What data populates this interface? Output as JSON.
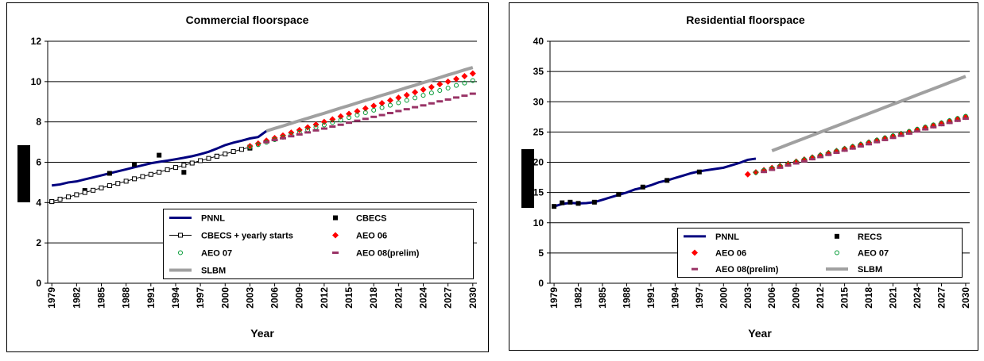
{
  "chart_data": [
    {
      "type": "line",
      "title": "Commercial floorspace",
      "xlabel": "Year",
      "xlim": [
        1978.5,
        2030.5
      ],
      "xticks": [
        1979,
        1982,
        1985,
        1988,
        1991,
        1994,
        1997,
        2000,
        2003,
        2006,
        2009,
        2012,
        2015,
        2018,
        2021,
        2024,
        2027,
        2030
      ],
      "ylim": [
        0,
        12
      ],
      "yticks": [
        0,
        2,
        4,
        6,
        8,
        10,
        12
      ],
      "grid": true,
      "legend": "lower right",
      "series": [
        {
          "name": "PNNL",
          "color": "#00007f",
          "marker": "line",
          "x": [
            1979,
            1980,
            1981,
            1982,
            1983,
            1984,
            1985,
            1986,
            1987,
            1988,
            1989,
            1990,
            1991,
            1992,
            1993,
            1994,
            1995,
            1996,
            1997,
            1998,
            1999,
            2000,
            2001,
            2002,
            2003,
            2004,
            2005
          ],
          "values": [
            4.85,
            4.9,
            5.0,
            5.05,
            5.15,
            5.25,
            5.35,
            5.45,
            5.55,
            5.65,
            5.75,
            5.85,
            5.95,
            6.02,
            6.08,
            6.15,
            6.22,
            6.3,
            6.4,
            6.52,
            6.68,
            6.85,
            6.97,
            7.07,
            7.18,
            7.25,
            7.55
          ]
        },
        {
          "name": "CBECS",
          "color": "#000000",
          "marker": "square",
          "x": [
            1979,
            1983,
            1986,
            1989,
            1992,
            1995,
            1999,
            2003
          ],
          "values": [
            4.05,
            4.6,
            5.45,
            5.9,
            6.35,
            5.5,
            6.3,
            6.7
          ]
        },
        {
          "name": "CBECS + yearly starts",
          "color": "#000000",
          "marker": "line-open-square",
          "x": [
            1979,
            1980,
            1981,
            1982,
            1983,
            1984,
            1985,
            1986,
            1987,
            1988,
            1989,
            1990,
            1991,
            1992,
            1993,
            1994,
            1995,
            1996,
            1997,
            1998,
            1999,
            2000,
            2001,
            2002,
            2003
          ],
          "values": [
            4.05,
            4.17,
            4.28,
            4.39,
            4.5,
            4.61,
            4.73,
            4.84,
            4.95,
            5.06,
            5.18,
            5.29,
            5.4,
            5.51,
            5.63,
            5.74,
            5.85,
            5.96,
            6.08,
            6.19,
            6.3,
            6.41,
            6.53,
            6.64,
            6.75
          ]
        },
        {
          "name": "AEO 06",
          "color": "#ff0000",
          "marker": "diamond",
          "x": [
            2003,
            2004,
            2005,
            2006,
            2007,
            2008,
            2009,
            2010,
            2011,
            2012,
            2013,
            2014,
            2015,
            2016,
            2017,
            2018,
            2019,
            2020,
            2021,
            2022,
            2023,
            2024,
            2025,
            2026,
            2027,
            2028,
            2029,
            2030
          ],
          "values": [
            6.8,
            6.93,
            7.07,
            7.2,
            7.33,
            7.47,
            7.6,
            7.73,
            7.87,
            8.0,
            8.13,
            8.27,
            8.4,
            8.53,
            8.67,
            8.8,
            8.93,
            9.07,
            9.2,
            9.33,
            9.47,
            9.6,
            9.73,
            9.87,
            10.0,
            10.13,
            10.27,
            10.4
          ]
        },
        {
          "name": "AEO 07",
          "color": "#009933",
          "marker": "open-circle",
          "x": [
            2003,
            2004,
            2005,
            2006,
            2007,
            2008,
            2009,
            2010,
            2011,
            2012,
            2013,
            2014,
            2015,
            2016,
            2017,
            2018,
            2019,
            2020,
            2021,
            2022,
            2023,
            2024,
            2025,
            2026,
            2027,
            2028,
            2029,
            2030
          ],
          "values": [
            6.75,
            6.87,
            6.99,
            7.12,
            7.24,
            7.36,
            7.48,
            7.61,
            7.73,
            7.85,
            7.97,
            8.09,
            8.22,
            8.34,
            8.46,
            8.58,
            8.71,
            8.83,
            8.95,
            9.07,
            9.19,
            9.32,
            9.44,
            9.56,
            9.68,
            9.81,
            9.93,
            10.05
          ]
        },
        {
          "name": "AEO 08(prelim)",
          "color": "#993366",
          "marker": "dash",
          "x": [
            2005,
            2006,
            2007,
            2008,
            2009,
            2010,
            2011,
            2012,
            2013,
            2014,
            2015,
            2016,
            2017,
            2018,
            2019,
            2020,
            2021,
            2022,
            2023,
            2024,
            2025,
            2026,
            2027,
            2028,
            2029,
            2030
          ],
          "values": [
            7.0,
            7.1,
            7.19,
            7.29,
            7.38,
            7.48,
            7.58,
            7.67,
            7.77,
            7.86,
            7.96,
            8.06,
            8.15,
            8.25,
            8.34,
            8.44,
            8.54,
            8.63,
            8.73,
            8.82,
            8.92,
            9.02,
            9.11,
            9.21,
            9.3,
            9.4
          ]
        },
        {
          "name": "SLBM",
          "color": "#a0a0a0",
          "marker": "thick-line",
          "x": [
            2005,
            2006,
            2007,
            2008,
            2009,
            2010,
            2011,
            2012,
            2013,
            2014,
            2015,
            2016,
            2017,
            2018,
            2019,
            2020,
            2021,
            2022,
            2023,
            2024,
            2025,
            2026,
            2027,
            2028,
            2029,
            2030
          ],
          "values": [
            7.55,
            7.68,
            7.8,
            7.93,
            8.06,
            8.18,
            8.31,
            8.43,
            8.56,
            8.69,
            8.81,
            8.94,
            9.07,
            9.19,
            9.32,
            9.44,
            9.57,
            9.7,
            9.82,
            9.95,
            10.07,
            10.2,
            10.33,
            10.45,
            10.58,
            10.7
          ]
        }
      ]
    },
    {
      "type": "line",
      "title": "Residential floorspace",
      "xlabel": "Year",
      "xlim": [
        1978.5,
        2030.5
      ],
      "xticks": [
        1979,
        1982,
        1985,
        1988,
        1991,
        1994,
        1997,
        2000,
        2003,
        2006,
        2009,
        2012,
        2015,
        2018,
        2021,
        2024,
        2027,
        2030
      ],
      "ylim": [
        0,
        40
      ],
      "yticks": [
        0,
        5,
        10,
        15,
        20,
        25,
        30,
        35,
        40
      ],
      "grid": true,
      "legend": "lower right",
      "series": [
        {
          "name": "PNNL",
          "color": "#00007f",
          "marker": "line",
          "x": [
            1979,
            1980,
            1981,
            1982,
            1983,
            1984,
            1985,
            1986,
            1987,
            1988,
            1989,
            1990,
            1991,
            1992,
            1993,
            1994,
            1995,
            1996,
            1997,
            1998,
            1999,
            2000,
            2001,
            2002,
            2003,
            2004
          ],
          "values": [
            12.7,
            13.1,
            13.3,
            13.2,
            13.25,
            13.4,
            13.8,
            14.2,
            14.6,
            15.0,
            15.5,
            15.8,
            16.2,
            16.7,
            17.0,
            17.4,
            17.8,
            18.2,
            18.5,
            18.7,
            18.9,
            19.1,
            19.5,
            19.9,
            20.4,
            20.6
          ]
        },
        {
          "name": "RECS",
          "color": "#000000",
          "marker": "square",
          "x": [
            1979,
            1980,
            1981,
            1982,
            1984,
            1987,
            1990,
            1993,
            1997
          ],
          "values": [
            12.7,
            13.3,
            13.4,
            13.2,
            13.4,
            14.7,
            15.9,
            17.0,
            18.4
          ]
        },
        {
          "name": "AEO 06",
          "color": "#ff0000",
          "marker": "diamond",
          "x": [
            2003,
            2004,
            2005,
            2006,
            2007,
            2008,
            2009,
            2010,
            2011,
            2012,
            2013,
            2014,
            2015,
            2016,
            2017,
            2018,
            2019,
            2020,
            2021,
            2022,
            2023,
            2024,
            2025,
            2026,
            2027,
            2028,
            2029,
            2030
          ],
          "values": [
            18.0,
            18.35,
            18.7,
            19.06,
            19.41,
            19.76,
            20.11,
            20.46,
            20.81,
            21.17,
            21.52,
            21.87,
            22.22,
            22.57,
            22.93,
            23.28,
            23.63,
            23.98,
            24.33,
            24.69,
            25.04,
            25.39,
            25.74,
            26.09,
            26.44,
            26.8,
            27.15,
            27.5
          ]
        },
        {
          "name": "AEO 07",
          "color": "#009933",
          "marker": "open-circle",
          "x": [
            2004,
            2005,
            2006,
            2007,
            2008,
            2009,
            2010,
            2011,
            2012,
            2013,
            2014,
            2015,
            2016,
            2017,
            2018,
            2019,
            2020,
            2021,
            2022,
            2023,
            2024,
            2025,
            2026,
            2027,
            2028,
            2029,
            2030
          ],
          "values": [
            18.3,
            18.66,
            19.02,
            19.37,
            19.73,
            20.09,
            20.45,
            20.81,
            21.16,
            21.52,
            21.88,
            22.24,
            22.6,
            22.95,
            23.31,
            23.67,
            24.03,
            24.39,
            24.74,
            25.1,
            25.46,
            25.82,
            26.18,
            26.53,
            26.89,
            27.25,
            27.6
          ]
        },
        {
          "name": "AEO 08(prelim)",
          "color": "#993366",
          "marker": "dash",
          "x": [
            2005,
            2006,
            2007,
            2008,
            2009,
            2010,
            2011,
            2012,
            2013,
            2014,
            2015,
            2016,
            2017,
            2018,
            2019,
            2020,
            2021,
            2022,
            2023,
            2024,
            2025,
            2026,
            2027,
            2028,
            2029,
            2030
          ],
          "values": [
            18.4,
            18.75,
            19.1,
            19.46,
            19.81,
            20.16,
            20.51,
            20.86,
            21.22,
            21.57,
            21.92,
            22.27,
            22.62,
            22.98,
            23.33,
            23.68,
            24.03,
            24.38,
            24.74,
            25.09,
            25.44,
            25.79,
            26.14,
            26.5,
            26.85,
            27.2
          ]
        },
        {
          "name": "SLBM",
          "color": "#a0a0a0",
          "marker": "thick-line",
          "x": [
            2006,
            2007,
            2008,
            2009,
            2010,
            2011,
            2012,
            2013,
            2014,
            2015,
            2016,
            2017,
            2018,
            2019,
            2020,
            2021,
            2022,
            2023,
            2024,
            2025,
            2026,
            2027,
            2028,
            2029,
            2030
          ],
          "values": [
            21.9,
            22.41,
            22.93,
            23.44,
            23.95,
            24.46,
            24.98,
            25.49,
            26.0,
            26.51,
            27.03,
            27.54,
            28.05,
            28.56,
            29.08,
            29.59,
            30.1,
            30.61,
            31.13,
            31.64,
            32.15,
            32.66,
            33.18,
            33.69,
            34.2
          ]
        }
      ]
    }
  ]
}
